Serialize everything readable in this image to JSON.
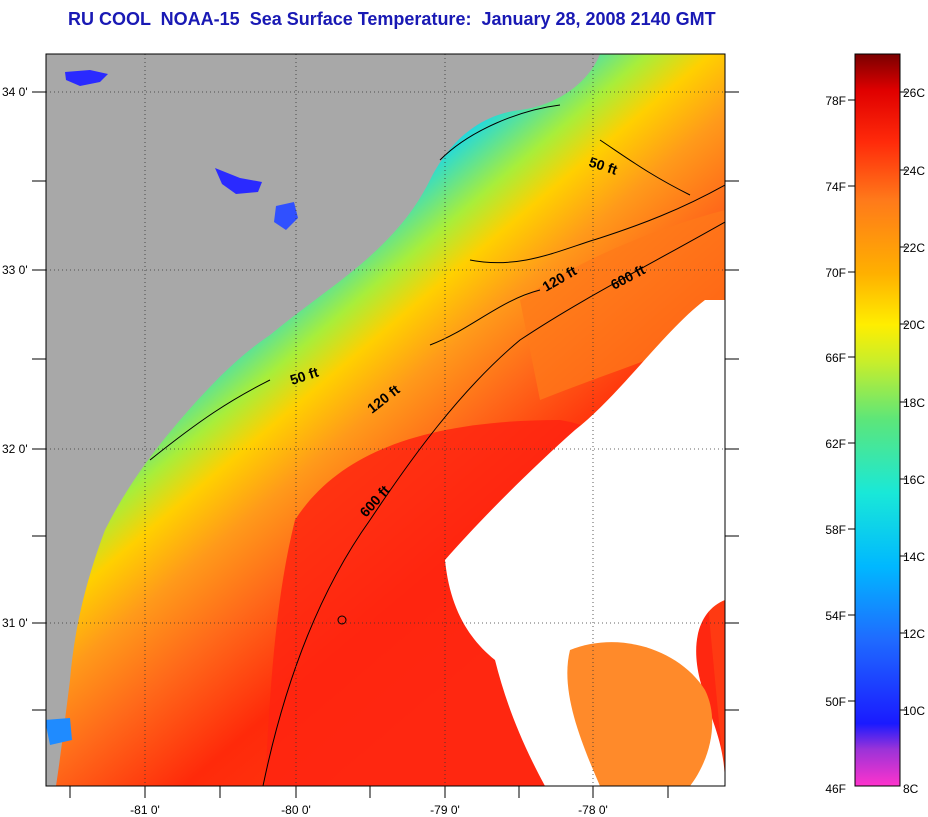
{
  "title": "RU COOL  NOAA-15  Sea Surface Temperature:  January 28, 2008 2140 GMT",
  "map": {
    "land_color": "#a8a8a8",
    "cloud_color": "#ffffff",
    "lat_ticks": [
      "34 0'",
      "33 0'",
      "32 0'",
      "31 0'"
    ],
    "lon_ticks": [
      "-81 0'",
      "-80 0'",
      "-79 0'",
      "-78 0'"
    ],
    "isobaths": [
      {
        "label": "50 ft",
        "depth_ft": 50
      },
      {
        "label": "50 ft",
        "depth_ft": 50
      },
      {
        "label": "120 ft",
        "depth_ft": 120
      },
      {
        "label": "120 ft",
        "depth_ft": 120
      },
      {
        "label": "600 ft",
        "depth_ft": 600
      },
      {
        "label": "600 ft",
        "depth_ft": 600
      }
    ]
  },
  "colorbar": {
    "fahrenheit_labels": [
      "78F",
      "74F",
      "70F",
      "66F",
      "62F",
      "58F",
      "54F",
      "50F",
      "46F"
    ],
    "celsius_labels": [
      "26C",
      "24C",
      "22C",
      "20C",
      "18C",
      "16C",
      "14C",
      "12C",
      "10C",
      "8C"
    ],
    "stops": [
      "#ff33cc",
      "#9b33d8",
      "#1a1aff",
      "#1f6bff",
      "#00b8ff",
      "#19e8d8",
      "#5ce67a",
      "#c9ee2a",
      "#ffee00",
      "#ffb000",
      "#ff7a1a",
      "#ff2a0a",
      "#e00000",
      "#7a0000"
    ]
  }
}
